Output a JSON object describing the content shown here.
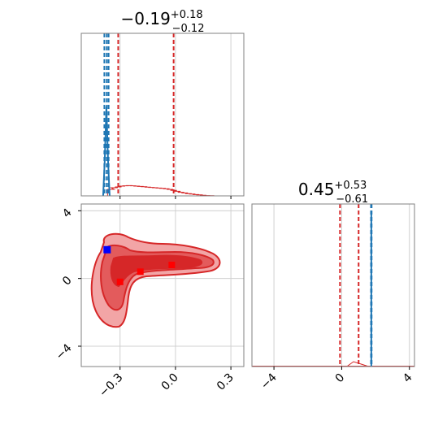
{
  "chart_data": [
    {
      "type": "line",
      "panel": "top-left-1d-marginal",
      "title": {
        "main": "−0.19",
        "sup": "+0.18",
        "sub": "−0.12"
      },
      "xlim": [
        -0.51,
        0.37
      ],
      "xticks": [
        -0.3,
        0.0,
        0.3
      ],
      "grid": true,
      "red_hist": {
        "x": [
          -0.35,
          -0.33,
          -0.31,
          -0.29,
          -0.27,
          -0.25,
          -0.23,
          -0.21,
          -0.19,
          -0.17,
          -0.15,
          -0.13,
          -0.11,
          -0.09,
          -0.07,
          -0.05,
          -0.03,
          -0.01,
          0.01,
          0.03,
          0.05,
          0.07,
          0.09,
          0.11,
          0.13,
          0.15,
          0.17,
          0.19
        ],
        "values": [
          0.04,
          0.05,
          0.055,
          0.06,
          0.062,
          0.063,
          0.062,
          0.06,
          0.058,
          0.056,
          0.054,
          0.052,
          0.05,
          0.048,
          0.046,
          0.044,
          0.04,
          0.034,
          0.028,
          0.022,
          0.018,
          0.014,
          0.011,
          0.008,
          0.006,
          0.004,
          0.002,
          0.001
        ]
      },
      "blue_spike": {
        "x": -0.374,
        "height": 0.55
      },
      "red_quantile_lines": [
        -0.31,
        -0.01
      ],
      "blue_quantile_lines": [
        -0.385,
        -0.372,
        -0.362
      ]
    },
    {
      "type": "heatmap",
      "panel": "bottom-left-2d",
      "xlim": [
        -0.51,
        0.37
      ],
      "ylim": [
        -5.2,
        4.4
      ],
      "xticks": [
        -0.3,
        0.0,
        0.3
      ],
      "yticks": [
        -4,
        0,
        4
      ],
      "grid": true,
      "contour_levels": [
        "outer",
        "middle",
        "inner"
      ],
      "red_markers": [
        {
          "x": -0.3,
          "y": -0.2
        },
        {
          "x": -0.19,
          "y": 0.4
        },
        {
          "x": -0.02,
          "y": 0.8
        }
      ],
      "blue_markers": [
        {
          "x": -0.37,
          "y": 1.7
        }
      ]
    },
    {
      "type": "line",
      "panel": "bottom-right-1d-marginal",
      "title": {
        "main": "0.45",
        "sup": "+0.53",
        "sub": "−0.61"
      },
      "xlim": [
        -5.3,
        4.3
      ],
      "xticks": [
        -4,
        0,
        4
      ],
      "grid": true,
      "red_curve": {
        "x": [
          0.3,
          0.5,
          0.7,
          1.0,
          1.3,
          1.6
        ],
        "values": [
          0.0,
          0.015,
          0.03,
          0.02,
          0.01,
          0.0
        ]
      },
      "blue_spike": {
        "x": 1.75,
        "height": 0.95
      },
      "red_quantile_lines": [
        -0.1,
        1.0
      ],
      "blue_quantile_lines": [
        1.72,
        1.78
      ]
    }
  ],
  "colors": {
    "red": "#d62728",
    "blue": "#1f77b4",
    "marker_blue": "#0000ff",
    "marker_red": "#ff0000",
    "fill_light": "#f2a5a6",
    "fill_mid": "#e35b5c",
    "fill_dark": "#d62728"
  }
}
